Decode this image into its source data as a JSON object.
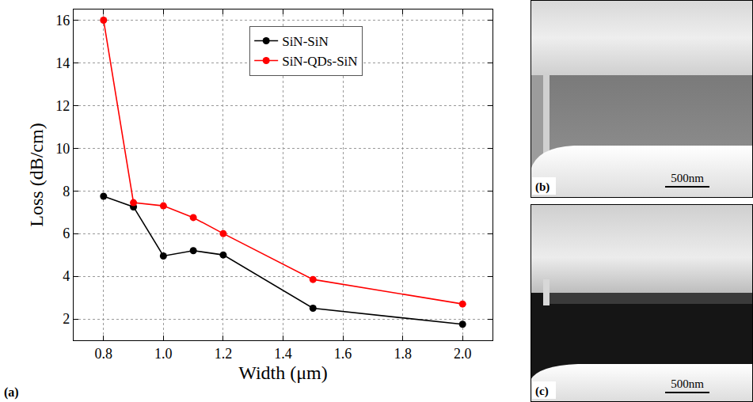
{
  "chart_data": {
    "type": "line",
    "xlabel": "Width (μm)",
    "ylabel": "Loss (dB/cm)",
    "panel_label": "(a)",
    "x": [
      0.8,
      0.9,
      1.0,
      1.1,
      1.2,
      1.5,
      2.0
    ],
    "series": [
      {
        "name": "SiN-SiN",
        "color": "#000000",
        "values": [
          7.75,
          7.25,
          4.95,
          5.2,
          5.0,
          2.5,
          1.75
        ]
      },
      {
        "name": "SiN-QDs-SiN",
        "color": "#ff0000",
        "values": [
          16.0,
          7.45,
          7.3,
          6.75,
          6.0,
          3.85,
          2.7
        ]
      }
    ],
    "xlim": [
      0.7,
      2.1
    ],
    "xticks": [
      0.8,
      {
        "value": 1,
        "label": "1.0"
      },
      1.2,
      1.4,
      1.6,
      1.8,
      {
        "value": 2,
        "label": "2.0"
      }
    ],
    "ylim": [
      1,
      16.5
    ],
    "yticks": [
      2,
      4,
      6,
      8,
      10,
      12,
      14,
      16
    ],
    "grid": true,
    "legend": "top",
    "marker": "circle",
    "line_style": "solid"
  },
  "panels": [
    {
      "label": "(b)",
      "scale_bar": "500nm"
    },
    {
      "label": "(c)",
      "scale_bar": "500nm"
    }
  ]
}
